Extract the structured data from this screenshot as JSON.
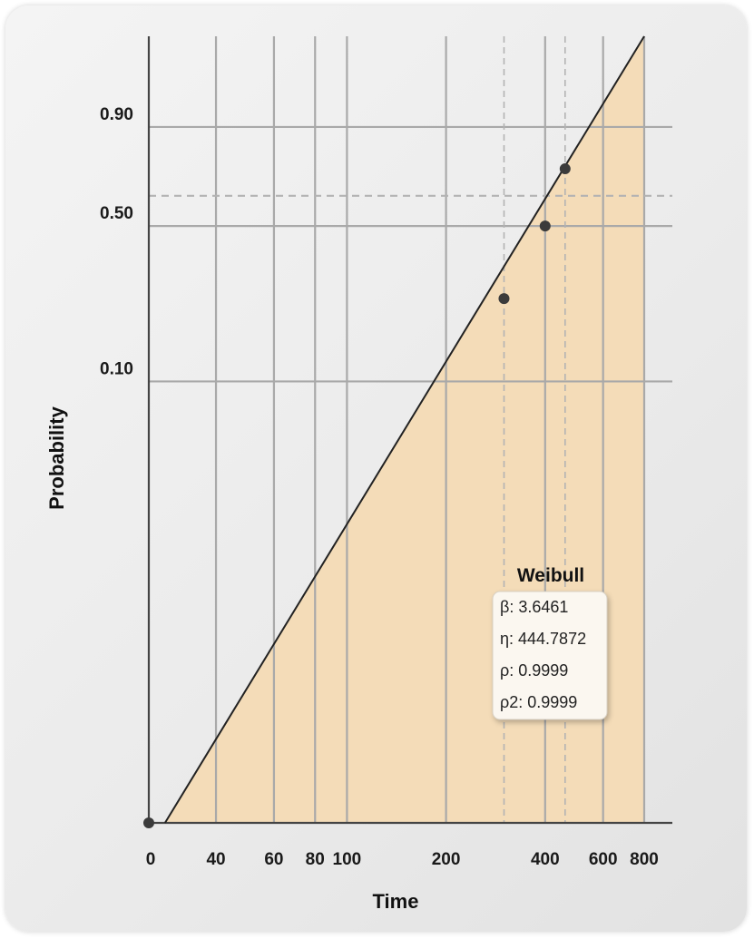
{
  "chart_data": {
    "type": "line",
    "title": "",
    "xlabel": "Time",
    "ylabel": "Probability",
    "x_scale": "log",
    "y_scale": "weibull",
    "x_ticks": [
      {
        "value": 40,
        "label": "40"
      },
      {
        "value": 60,
        "label": "60"
      },
      {
        "value": 80,
        "label": "80"
      },
      {
        "value": 100,
        "label": "100"
      },
      {
        "value": 200,
        "label": "200"
      },
      {
        "value": 400,
        "label": "400"
      },
      {
        "value": 600,
        "label": "600"
      },
      {
        "value": 800,
        "label": "800"
      }
    ],
    "x_origin_label": "0",
    "y_ticks": [
      {
        "value": 0.1,
        "label": "0.10"
      },
      {
        "value": 0.5,
        "label": "0.50"
      },
      {
        "value": 0.9,
        "label": "0.90"
      }
    ],
    "xlim": [
      25,
      800
    ],
    "ylim": [
      0.0005,
      0.999
    ],
    "grid": true,
    "fit_line": {
      "x": [
        28,
        800
      ],
      "y": [
        0.0004,
        0.999
      ]
    },
    "points": [
      {
        "x": 25,
        "y": 0.0005
      },
      {
        "x": 300,
        "y": 0.25
      },
      {
        "x": 400,
        "y": 0.5
      },
      {
        "x": 460,
        "y": 0.75
      }
    ],
    "guide_lines": {
      "x": [
        300,
        460
      ],
      "y": [
        0.632
      ]
    },
    "legend": {
      "title": "Weibull",
      "position": "lower-right",
      "entries": [
        "β: 3.6461",
        "η: 444.7872",
        "ρ: 0.9999",
        "ρ2: 0.9999"
      ]
    },
    "colors": {
      "fill": "#f4dcb8",
      "line": "#222222",
      "grid": "#a9a9a9",
      "guide": "#b3b3b3",
      "point": "#3b3b3b"
    }
  }
}
